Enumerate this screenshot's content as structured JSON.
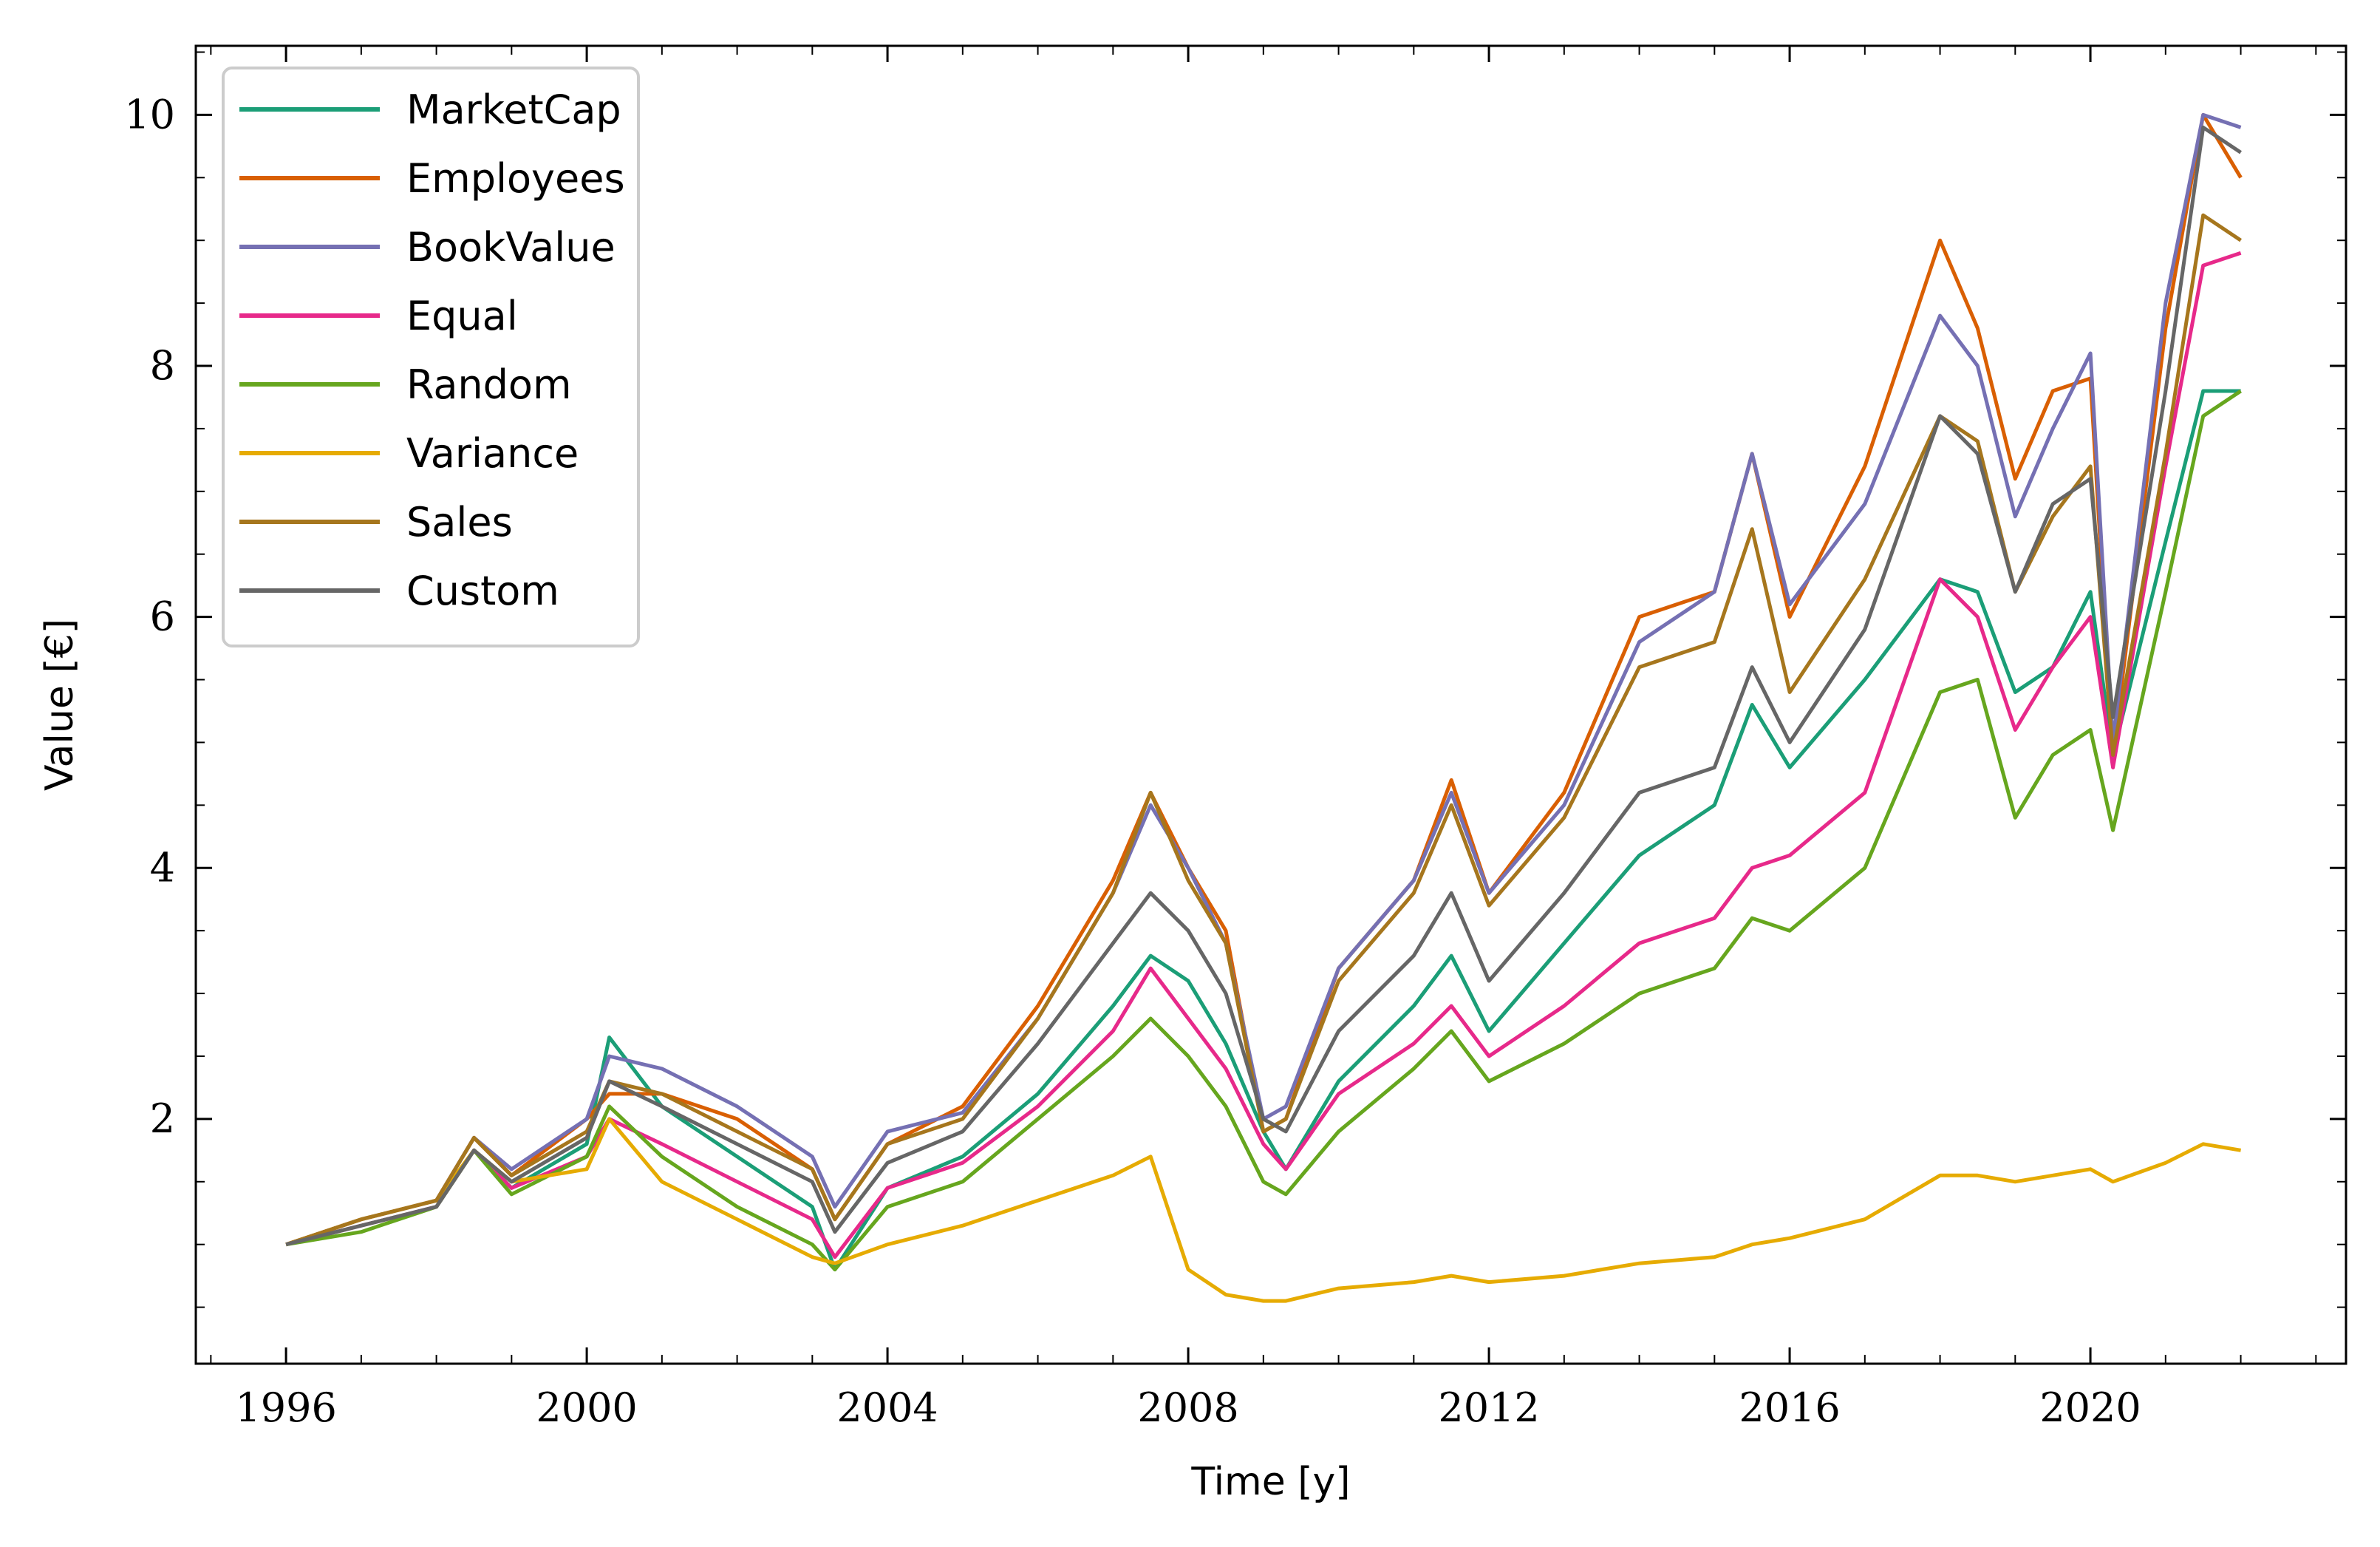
{
  "chart_data": {
    "type": "line",
    "xlabel": "Time [y]",
    "ylabel": "Value [€]",
    "xlim": [
      1994.8,
      2023.4
    ],
    "ylim": [
      0.05,
      10.55
    ],
    "x_ticks": [
      1996,
      2000,
      2004,
      2008,
      2012,
      2016,
      2020
    ],
    "x_tick_labels": [
      "1996",
      "2000",
      "2004",
      "2008",
      "2012",
      "2016",
      "2020"
    ],
    "y_ticks": [
      2,
      4,
      6,
      8,
      10
    ],
    "y_tick_labels": [
      "2",
      "4",
      "6",
      "8",
      "10"
    ],
    "legend_position": "top-left",
    "grid": false,
    "x": [
      1996.0,
      1997.0,
      1998.0,
      1998.5,
      1999.0,
      2000.0,
      2000.3,
      2001.0,
      2002.0,
      2003.0,
      2003.3,
      2004.0,
      2005.0,
      2006.0,
      2007.0,
      2007.5,
      2008.0,
      2008.5,
      2009.0,
      2009.3,
      2010.0,
      2011.0,
      2011.5,
      2012.0,
      2013.0,
      2014.0,
      2015.0,
      2015.5,
      2016.0,
      2017.0,
      2018.0,
      2018.5,
      2019.0,
      2019.5,
      2020.0,
      2020.3,
      2021.0,
      2021.5,
      2022.0
    ],
    "series": [
      {
        "name": "MarketCap",
        "color": "#1b9e77",
        "values": [
          1.0,
          1.15,
          1.3,
          1.75,
          1.45,
          1.8,
          2.65,
          2.1,
          1.7,
          1.3,
          0.8,
          1.45,
          1.7,
          2.2,
          2.9,
          3.3,
          3.1,
          2.6,
          1.9,
          1.6,
          2.3,
          2.9,
          3.3,
          2.7,
          3.4,
          4.1,
          4.5,
          5.3,
          4.8,
          5.5,
          6.3,
          6.2,
          5.4,
          5.6,
          6.2,
          4.9,
          6.6,
          7.8,
          7.8
        ]
      },
      {
        "name": "Employees",
        "color": "#d95f02",
        "values": [
          1.0,
          1.2,
          1.35,
          1.85,
          1.55,
          2.0,
          2.2,
          2.2,
          2.0,
          1.6,
          1.2,
          1.8,
          2.1,
          2.9,
          3.9,
          4.6,
          4.0,
          3.5,
          1.9,
          2.0,
          3.2,
          3.9,
          4.7,
          3.8,
          4.6,
          6.0,
          6.2,
          7.3,
          6.0,
          7.2,
          9.0,
          8.3,
          7.1,
          7.8,
          7.9,
          4.9,
          8.3,
          10.0,
          9.5
        ]
      },
      {
        "name": "BookValue",
        "color": "#7570b3",
        "values": [
          1.0,
          1.2,
          1.35,
          1.85,
          1.6,
          2.0,
          2.5,
          2.4,
          2.1,
          1.7,
          1.3,
          1.9,
          2.05,
          2.8,
          3.8,
          4.5,
          4.0,
          3.4,
          2.0,
          2.1,
          3.2,
          3.9,
          4.6,
          3.8,
          4.5,
          5.8,
          6.2,
          7.3,
          6.1,
          6.9,
          8.4,
          8.0,
          6.8,
          7.5,
          8.1,
          5.0,
          8.5,
          10.0,
          9.9
        ]
      },
      {
        "name": "Equal",
        "color": "#e7298a",
        "values": [
          1.0,
          1.15,
          1.3,
          1.75,
          1.45,
          1.7,
          2.0,
          1.8,
          1.5,
          1.2,
          0.9,
          1.45,
          1.65,
          2.1,
          2.7,
          3.2,
          2.8,
          2.4,
          1.8,
          1.6,
          2.2,
          2.6,
          2.9,
          2.5,
          2.9,
          3.4,
          3.6,
          4.0,
          4.1,
          4.6,
          6.3,
          6.0,
          5.1,
          5.6,
          6.0,
          4.8,
          7.2,
          8.8,
          8.9
        ]
      },
      {
        "name": "Random",
        "color": "#66a61e",
        "values": [
          1.0,
          1.1,
          1.3,
          1.75,
          1.4,
          1.7,
          2.1,
          1.7,
          1.3,
          1.0,
          0.8,
          1.3,
          1.5,
          2.0,
          2.5,
          2.8,
          2.5,
          2.1,
          1.5,
          1.4,
          1.9,
          2.4,
          2.7,
          2.3,
          2.6,
          3.0,
          3.2,
          3.6,
          3.5,
          4.0,
          5.4,
          5.5,
          4.4,
          4.9,
          5.1,
          4.3,
          6.2,
          7.6,
          7.8
        ]
      },
      {
        "name": "Variance",
        "color": "#e6ab02",
        "values": [
          1.0,
          1.2,
          1.35,
          1.75,
          1.5,
          1.6,
          2.0,
          1.5,
          1.2,
          0.9,
          0.85,
          1.0,
          1.15,
          1.35,
          1.55,
          1.7,
          0.8,
          0.6,
          0.55,
          0.55,
          0.65,
          0.7,
          0.75,
          0.7,
          0.75,
          0.85,
          0.9,
          1.0,
          1.05,
          1.2,
          1.55,
          1.55,
          1.5,
          1.55,
          1.6,
          1.5,
          1.65,
          1.8,
          1.75
        ]
      },
      {
        "name": "Sales",
        "color": "#a6761d",
        "values": [
          1.0,
          1.2,
          1.35,
          1.85,
          1.55,
          1.9,
          2.3,
          2.2,
          1.9,
          1.6,
          1.2,
          1.8,
          2.0,
          2.8,
          3.8,
          4.6,
          3.9,
          3.4,
          1.9,
          2.0,
          3.1,
          3.8,
          4.5,
          3.7,
          4.4,
          5.6,
          5.8,
          6.7,
          5.4,
          6.3,
          7.6,
          7.4,
          6.2,
          6.8,
          7.2,
          4.9,
          7.3,
          9.2,
          9.0
        ]
      },
      {
        "name": "Custom",
        "color": "#666666",
        "values": [
          1.0,
          1.15,
          1.3,
          1.75,
          1.5,
          1.85,
          2.3,
          2.1,
          1.8,
          1.5,
          1.1,
          1.65,
          1.9,
          2.6,
          3.4,
          3.8,
          3.5,
          3.0,
          2.0,
          1.9,
          2.7,
          3.3,
          3.8,
          3.1,
          3.8,
          4.6,
          4.8,
          5.6,
          5.0,
          5.9,
          7.6,
          7.3,
          6.2,
          6.9,
          7.1,
          5.2,
          7.8,
          9.9,
          9.7
        ]
      }
    ]
  }
}
